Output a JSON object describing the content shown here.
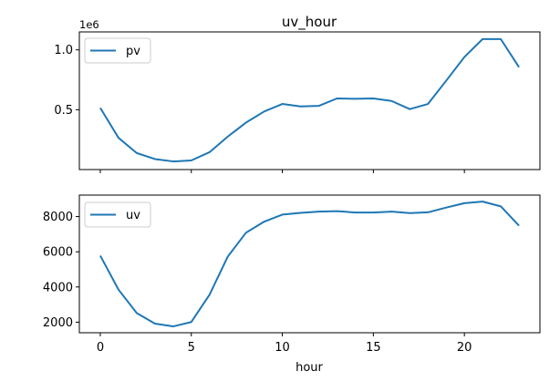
{
  "chart_data": [
    {
      "type": "line",
      "title": "uv_hour",
      "offset_label": "1e6",
      "xlabel": "",
      "ylabel": "",
      "x": [
        0,
        1,
        2,
        3,
        4,
        5,
        6,
        7,
        8,
        9,
        10,
        11,
        12,
        13,
        14,
        15,
        16,
        17,
        18,
        19,
        20,
        21,
        22,
        23
      ],
      "series": [
        {
          "name": "pv",
          "color": "#1f77b4",
          "values": [
            0.515,
            0.265,
            0.138,
            0.088,
            0.068,
            0.076,
            0.145,
            0.275,
            0.392,
            0.485,
            0.548,
            0.527,
            0.532,
            0.594,
            0.591,
            0.594,
            0.573,
            0.505,
            0.548,
            0.742,
            0.94,
            1.09,
            1.09,
            0.855
          ]
        }
      ],
      "xlim": [
        -1.15,
        24.15
      ],
      "ylim": [
        0.0,
        1.15
      ],
      "yticks": [
        0.5,
        1.0
      ],
      "ytick_labels": [
        "0.5",
        "1.0"
      ],
      "legend": "upper left",
      "grid": false
    },
    {
      "type": "line",
      "title": "",
      "xlabel": "hour",
      "ylabel": "",
      "x": [
        0,
        1,
        2,
        3,
        4,
        5,
        6,
        7,
        8,
        9,
        10,
        11,
        12,
        13,
        14,
        15,
        16,
        17,
        18,
        19,
        20,
        21,
        22,
        23
      ],
      "series": [
        {
          "name": "uv",
          "color": "#1f77b4",
          "values": [
            5780,
            3850,
            2520,
            1920,
            1760,
            2010,
            3560,
            5720,
            7080,
            7710,
            8110,
            8210,
            8280,
            8310,
            8230,
            8230,
            8280,
            8200,
            8240,
            8510,
            8760,
            8850,
            8580,
            7480
          ]
        }
      ],
      "xlim": [
        -1.15,
        24.15
      ],
      "ylim": [
        1400,
        9220
      ],
      "xticks": [
        0,
        5,
        10,
        15,
        20
      ],
      "xtick_labels": [
        "0",
        "5",
        "10",
        "15",
        "20"
      ],
      "yticks": [
        2000,
        4000,
        6000,
        8000
      ],
      "ytick_labels": [
        "2000",
        "4000",
        "6000",
        "8000"
      ],
      "legend": "upper left",
      "grid": false
    }
  ]
}
